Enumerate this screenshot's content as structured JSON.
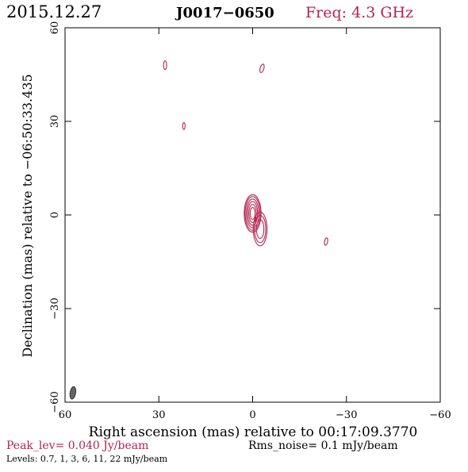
{
  "header": {
    "date": "2015.12.27",
    "source": "J0017−0650",
    "frequency": "Freq: 4.3 GHz"
  },
  "footer": {
    "peak": "Peak_lev=  0.040 Jy/beam",
    "rms": "Rms_noise=   0.1 mJy/beam",
    "levels": "Levels: 0.7,    1,    3,    6,   11,   22  mJy/beam"
  },
  "colors": {
    "contour": "#b5234f",
    "beam": "#666666",
    "axis": "#000000",
    "peak_text": "#b5234f",
    "freq_text": "#b5234f"
  },
  "chart_data": {
    "type": "contour",
    "xlabel": "Right ascension (mas) relative to 00:17:09.3770",
    "ylabel": "Declination (mas) relative to −06:50:33.435",
    "xlim": [
      60,
      -60
    ],
    "ylim": [
      -60,
      60
    ],
    "xticks": [
      60,
      30,
      0,
      -30,
      -60
    ],
    "yticks": [
      -60,
      -30,
      0,
      30,
      60
    ],
    "xtick_labels": [
      "60",
      "30",
      "0",
      "−30",
      "−60"
    ],
    "ytick_labels": [
      "−60",
      "−30",
      "0",
      "30",
      "60"
    ],
    "levels_mJy": [
      0.7,
      1,
      3,
      6,
      11,
      22
    ],
    "peak_Jy_per_beam": 0.04,
    "rms_mJy_per_beam": 0.1,
    "core": {
      "ra_mas": 0.0,
      "dec_mas": 0.5,
      "rings": [
        {
          "level": 0.7,
          "rx": 2.7,
          "ry": 6.0
        },
        {
          "level": 1,
          "rx": 2.4,
          "ry": 5.4
        },
        {
          "level": 3,
          "rx": 2.0,
          "ry": 4.6
        },
        {
          "level": 6,
          "rx": 1.6,
          "ry": 3.8
        },
        {
          "level": 11,
          "rx": 1.2,
          "ry": 2.9
        },
        {
          "level": 22,
          "rx": 0.8,
          "ry": 1.9
        }
      ]
    },
    "jet": {
      "ra_mas": -2.4,
      "dec_mas": -4.5,
      "rings": [
        {
          "level": 0.7,
          "rx": 2.2,
          "ry": 5.4
        },
        {
          "level": 1,
          "rx": 1.8,
          "ry": 4.4
        },
        {
          "level": 3,
          "rx": 1.2,
          "ry": 3.0
        }
      ]
    },
    "noise_blobs": [
      {
        "ra_mas": 28.0,
        "dec_mas": 48.0,
        "rx": 0.5,
        "ry": 1.4,
        "angle": 0
      },
      {
        "ra_mas": -3.0,
        "dec_mas": 47.0,
        "rx": 0.6,
        "ry": 1.4,
        "angle": 15
      },
      {
        "ra_mas": 22.0,
        "dec_mas": 28.5,
        "rx": 0.4,
        "ry": 1.1,
        "angle": 0
      },
      {
        "ra_mas": -23.5,
        "dec_mas": -8.5,
        "rx": 0.5,
        "ry": 1.2,
        "angle": 10
      }
    ],
    "beam": {
      "ra_mas": 57.5,
      "dec_mas": -57.0,
      "rx": 0.9,
      "ry": 2.0,
      "angle": 10
    }
  }
}
